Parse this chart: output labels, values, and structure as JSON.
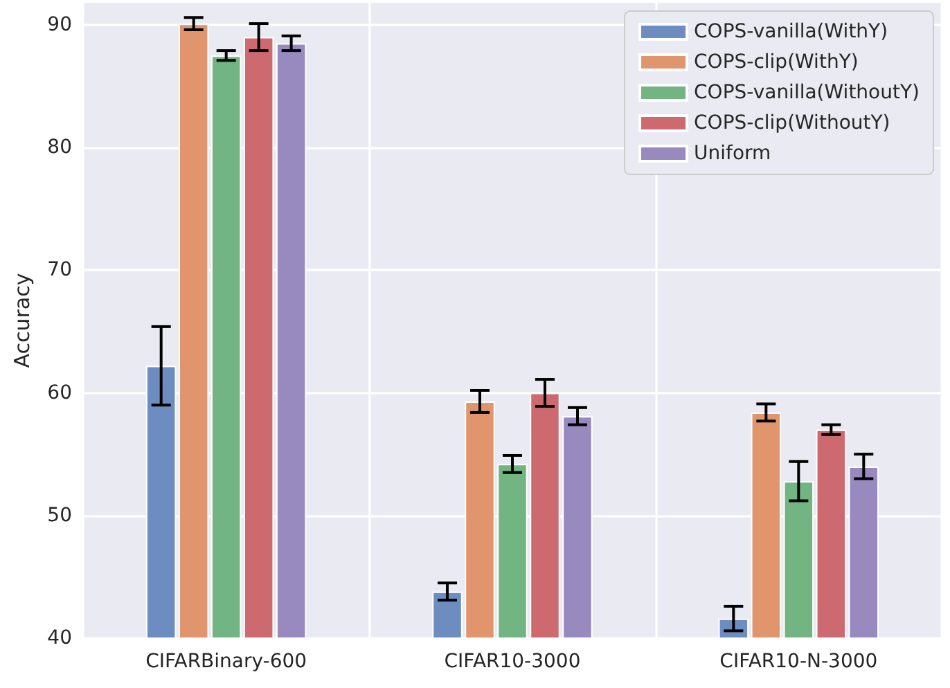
{
  "chart_data": {
    "type": "bar",
    "ylabel": "Accuracy",
    "categories": [
      "CIFARBinary-600",
      "CIFAR10-3000",
      "CIFAR10-N-3000"
    ],
    "series": [
      {
        "name": "COPS-vanilla(WithY)",
        "color": "#6d8dc1",
        "values": [
          62.2,
          43.8,
          41.6
        ],
        "errors": [
          3.2,
          0.7,
          1.0
        ]
      },
      {
        "name": "COPS-clip(WithY)",
        "color": "#e0956d",
        "values": [
          90.1,
          59.3,
          58.4
        ],
        "errors": [
          0.5,
          0.9,
          0.7
        ]
      },
      {
        "name": "COPS-vanilla(WithoutY)",
        "color": "#72b582",
        "values": [
          87.5,
          54.2,
          52.8
        ],
        "errors": [
          0.4,
          0.7,
          1.6
        ]
      },
      {
        "name": "COPS-clip(WithoutY)",
        "color": "#cc6a70",
        "values": [
          89.0,
          60.0,
          57.0
        ],
        "errors": [
          1.1,
          1.1,
          0.4
        ]
      },
      {
        "name": "Uniform",
        "color": "#9889bf",
        "values": [
          88.5,
          58.1,
          54.0
        ],
        "errors": [
          0.6,
          0.7,
          1.0
        ]
      }
    ],
    "ylim": [
      40,
      91.8
    ],
    "yticks": [
      40,
      50,
      60,
      70,
      80,
      90
    ],
    "grid": true,
    "legend": "top right"
  }
}
